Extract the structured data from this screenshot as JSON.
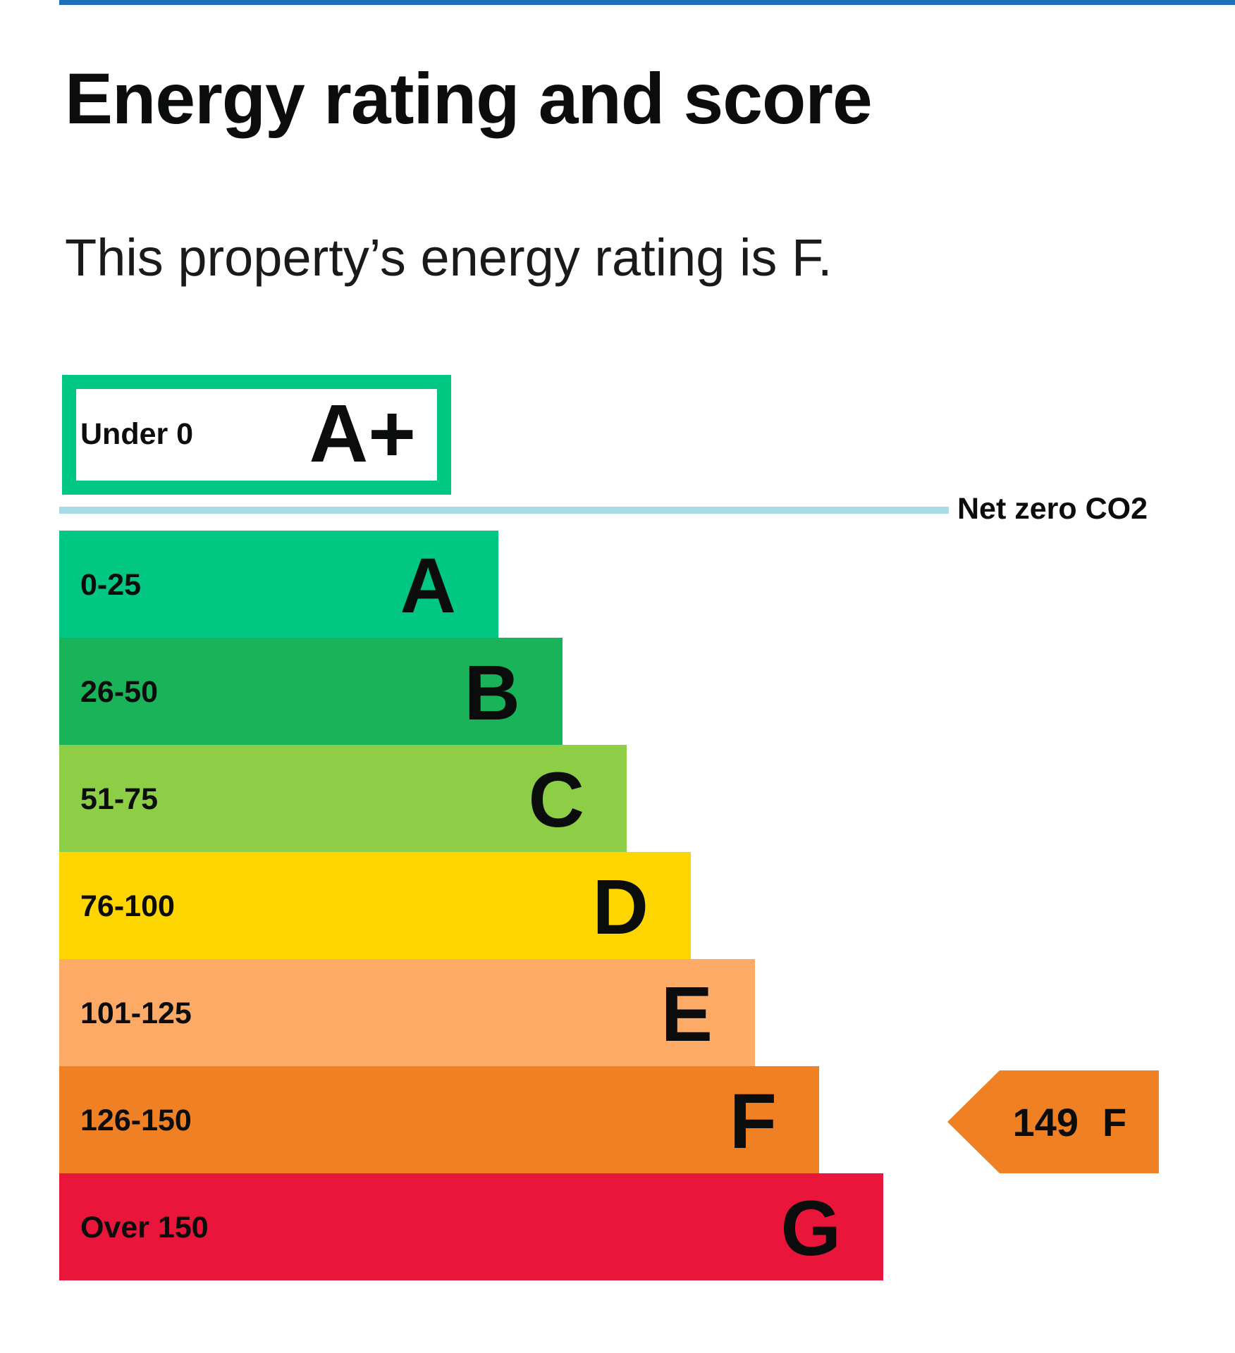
{
  "header": {
    "title": "Energy rating and score",
    "summary": "This property’s energy rating is F."
  },
  "chart_data": {
    "type": "bar",
    "plus_band": {
      "range": "Under 0",
      "letter": "A+",
      "color": "#00c781"
    },
    "net_zero_label": "Net zero CO2",
    "net_zero_line_color": "#a8dbe6",
    "bands": [
      {
        "range": "0-25",
        "letter": "A",
        "color": "#00c781"
      },
      {
        "range": "26-50",
        "letter": "B",
        "color": "#19b459"
      },
      {
        "range": "51-75",
        "letter": "C",
        "color": "#8dce46"
      },
      {
        "range": "76-100",
        "letter": "D",
        "color": "#ffd500"
      },
      {
        "range": "101-125",
        "letter": "E",
        "color": "#fcaa65"
      },
      {
        "range": "126-150",
        "letter": "F",
        "color": "#ef8023"
      },
      {
        "range": "Over 150",
        "letter": "G",
        "color": "#e9153b"
      }
    ],
    "current": {
      "score": "149",
      "letter": "F",
      "color": "#ef8023"
    }
  }
}
